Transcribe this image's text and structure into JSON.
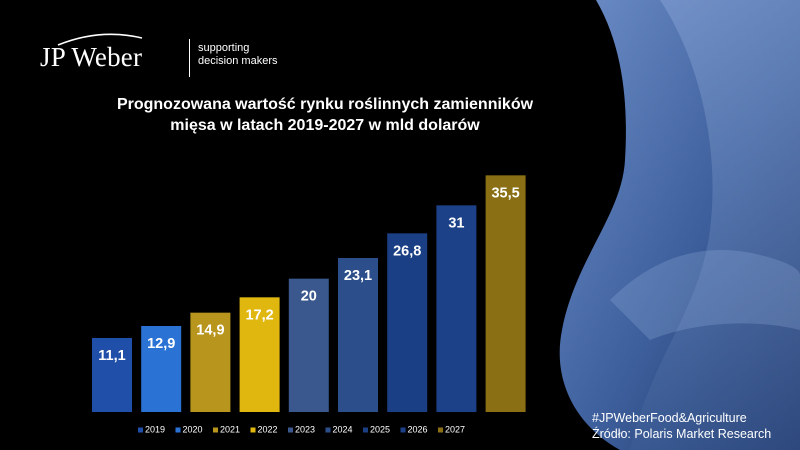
{
  "brand": {
    "name": "JP Weber",
    "tagline_line1": "supporting",
    "tagline_line2": "decision makers"
  },
  "title_line1": "Prognozowana wartość rynku roślinnych zamienników",
  "title_line2": "mięsa w latach 2019-2027 w mld dolarów",
  "footer": {
    "hashtag": "#JPWeberFood&Agriculture",
    "source": "Źródło: Polaris Market Research"
  },
  "colors": {
    "background": "#000000",
    "decor_wave": "#3d5f9c",
    "decor_wave_light": "#6e8fc8"
  },
  "chart_data": {
    "type": "bar",
    "title": "Prognozowana wartość rynku roślinnych zamienników mięsa w latach 2019-2027 w mld dolarów",
    "categories": [
      "2019",
      "2020",
      "2021",
      "2022",
      "2023",
      "2024",
      "2025",
      "2026",
      "2027"
    ],
    "values": [
      11.1,
      12.9,
      14.9,
      17.2,
      20,
      23.1,
      26.8,
      31,
      35.5
    ],
    "value_labels": [
      "11,1",
      "12,9",
      "14,9",
      "17,2",
      "20",
      "23,1",
      "26,8",
      "31",
      "35,5"
    ],
    "colors": [
      "#1f4fa8",
      "#2a72d4",
      "#b8951c",
      "#e0b70f",
      "#3a588e",
      "#2c4f8c",
      "#1b3f84",
      "#1d4188",
      "#8a6f14"
    ],
    "legend_placement": "bottom",
    "grid": false,
    "ylim": [
      0,
      36
    ],
    "xlabel": "",
    "ylabel": ""
  }
}
